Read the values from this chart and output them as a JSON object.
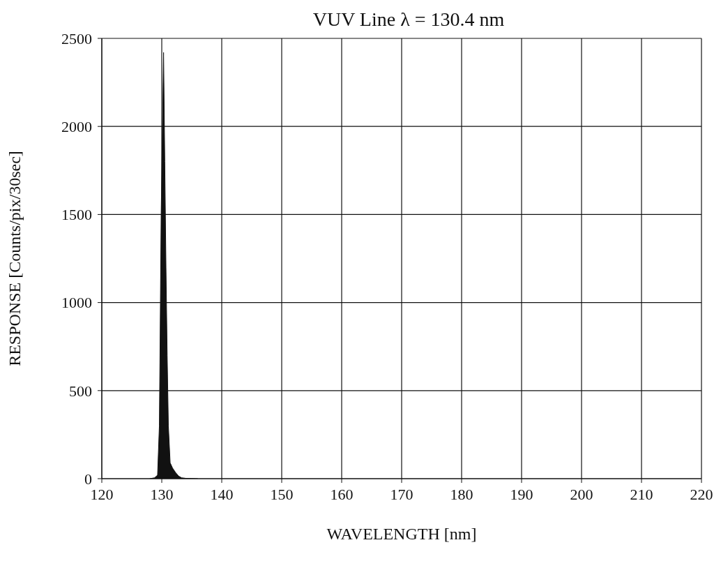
{
  "chart_data": {
    "type": "area",
    "title": "VUV Line λ = 130.4 nm",
    "xlabel": "WAVELENGTH [nm]",
    "ylabel": "RESPONSE [Counts/pix/30sec]",
    "x": [
      128,
      128.8,
      129.3,
      129.6,
      129.9,
      130.3,
      130.5,
      130.7,
      130.9,
      131.1,
      131.4,
      131.8,
      132.3,
      132.8,
      133.3,
      134,
      136
    ],
    "series": [
      {
        "color": "#111111",
        "values": [
          0,
          5,
          20,
          300,
          1500,
          2420,
          1800,
          1200,
          700,
          300,
          90,
          60,
          35,
          15,
          5,
          2,
          0
        ]
      }
    ],
    "xlim": [
      120,
      220
    ],
    "xticks": [
      120,
      130,
      140,
      150,
      160,
      170,
      180,
      190,
      200,
      210,
      220
    ],
    "ylim": [
      0,
      2500
    ],
    "yticks": [
      0,
      500,
      1000,
      1500,
      2000,
      2500
    ],
    "grid": true
  }
}
